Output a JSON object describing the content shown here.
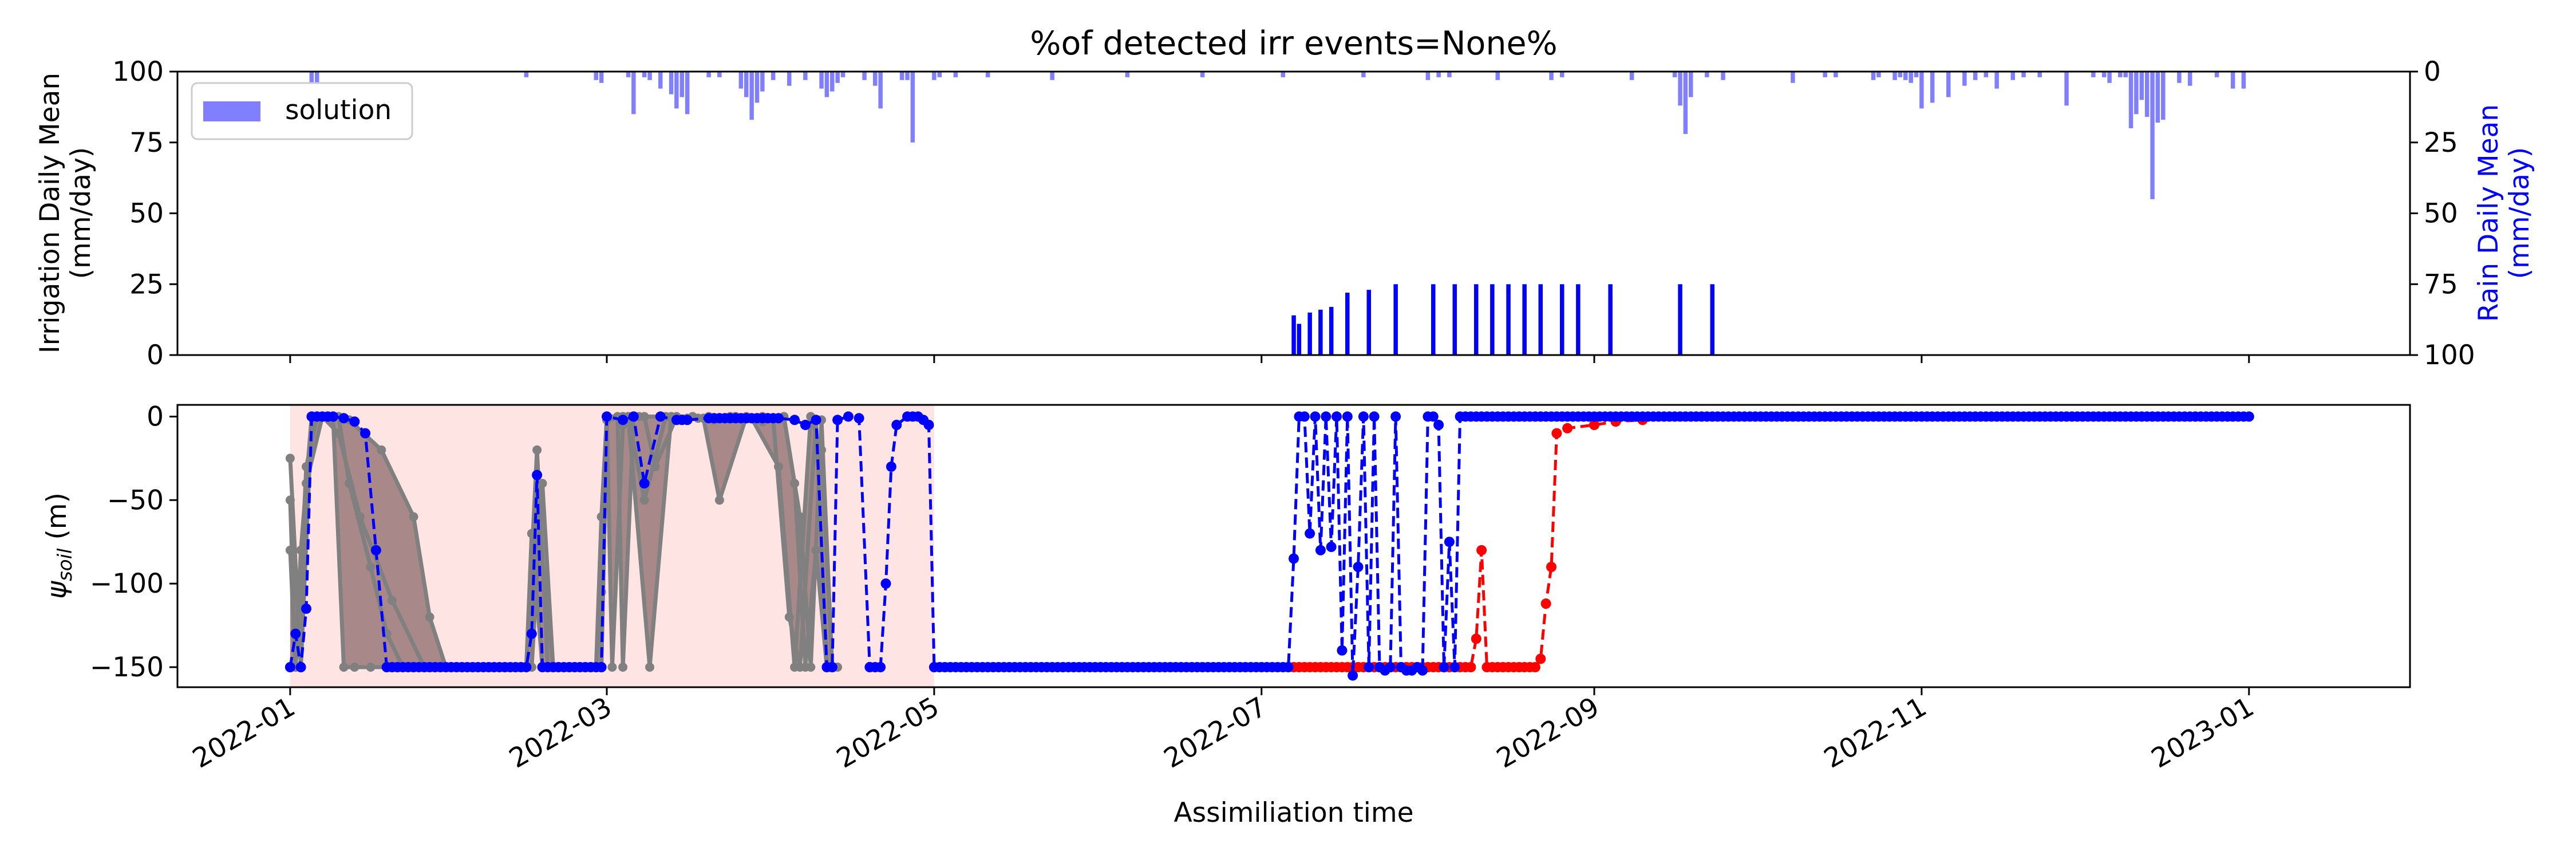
{
  "chart_data": [
    {
      "type": "bar",
      "title": "%of detected irr events=None%",
      "ylabel": "Irrigation Daily Mean\n(mm/day)",
      "ylim": [
        0,
        100
      ],
      "yticks": [
        "0",
        "25",
        "50",
        "75",
        "100"
      ],
      "y2label": "Rain Daily Mean\n(mm/day)",
      "y2lim": [
        100,
        0
      ],
      "y2ticks": [
        "0",
        "25",
        "50",
        "75",
        "100"
      ],
      "y2_color": "#0000ff",
      "legend": {
        "placement": "top-left",
        "entries": [
          "solution"
        ]
      },
      "xlim": [
        "2021-12-11",
        "2023-01-31"
      ],
      "series": [
        {
          "name": "solution",
          "axis": "right",
          "color": "#8080ff",
          "x": [
            "2022-01-05",
            "2022-01-06",
            "2022-02-14",
            "2022-02-27",
            "2022-02-28",
            "2022-03-05",
            "2022-03-06",
            "2022-03-08",
            "2022-03-09",
            "2022-03-11",
            "2022-03-13",
            "2022-03-14",
            "2022-03-15",
            "2022-03-16",
            "2022-03-20",
            "2022-03-22",
            "2022-03-26",
            "2022-03-27",
            "2022-03-28",
            "2022-03-29",
            "2022-03-30",
            "2022-04-01",
            "2022-04-04",
            "2022-04-07",
            "2022-04-10",
            "2022-04-11",
            "2022-04-12",
            "2022-04-13",
            "2022-04-14",
            "2022-04-18",
            "2022-04-20",
            "2022-04-21",
            "2022-04-25",
            "2022-04-26",
            "2022-04-27",
            "2022-05-01",
            "2022-05-02",
            "2022-05-05",
            "2022-05-11",
            "2022-05-23",
            "2022-06-06",
            "2022-06-20",
            "2022-07-05",
            "2022-07-20",
            "2022-08-01",
            "2022-08-03",
            "2022-08-05",
            "2022-08-14",
            "2022-08-24",
            "2022-08-26",
            "2022-09-08",
            "2022-09-16",
            "2022-09-17",
            "2022-09-18",
            "2022-09-19",
            "2022-09-22",
            "2022-09-25",
            "2022-10-08",
            "2022-10-14",
            "2022-10-16",
            "2022-10-23",
            "2022-10-24",
            "2022-10-27",
            "2022-10-28",
            "2022-10-29",
            "2022-10-30",
            "2022-10-31",
            "2022-11-01",
            "2022-11-03",
            "2022-11-06",
            "2022-11-09",
            "2022-11-11",
            "2022-11-13",
            "2022-11-15",
            "2022-11-18",
            "2022-11-20",
            "2022-11-23",
            "2022-11-28",
            "2022-12-03",
            "2022-12-05",
            "2022-12-06",
            "2022-12-08",
            "2022-12-09",
            "2022-12-10",
            "2022-12-11",
            "2022-12-12",
            "2022-12-13",
            "2022-12-14",
            "2022-12-15",
            "2022-12-16",
            "2022-12-19",
            "2022-12-21",
            "2022-12-26",
            "2022-12-29",
            "2022-12-31"
          ],
          "values": [
            4,
            4,
            2,
            3,
            4,
            2,
            15,
            2,
            3,
            6,
            8,
            13,
            9,
            15,
            2,
            2,
            6,
            9,
            17,
            11,
            7,
            3,
            5,
            3,
            6,
            9,
            7,
            4,
            2,
            3,
            5,
            13,
            3,
            3,
            25,
            3,
            2,
            2,
            2,
            3,
            2,
            2,
            2,
            2,
            3,
            2,
            2,
            3,
            3,
            2,
            3,
            2,
            12,
            22,
            9,
            2,
            3,
            4,
            2,
            2,
            3,
            2,
            3,
            2,
            3,
            4,
            2,
            13,
            11,
            9,
            5,
            3,
            2,
            6,
            3,
            2,
            2,
            12,
            2,
            2,
            4,
            2,
            2,
            20,
            15,
            10,
            16,
            45,
            18,
            17,
            4,
            5,
            2,
            6,
            6
          ]
        },
        {
          "name": "",
          "axis": "left",
          "color": "#0000ff",
          "x": [
            "2022-07-07",
            "2022-07-08",
            "2022-07-10",
            "2022-07-12",
            "2022-07-14",
            "2022-07-17",
            "2022-07-21",
            "2022-07-26",
            "2022-08-02",
            "2022-08-06",
            "2022-08-10",
            "2022-08-13",
            "2022-08-16",
            "2022-08-19",
            "2022-08-22",
            "2022-08-26",
            "2022-08-29",
            "2022-09-04",
            "2022-09-17",
            "2022-09-23"
          ],
          "values": [
            14,
            11,
            15,
            16,
            17,
            22,
            23,
            25,
            25,
            25,
            25,
            25,
            25,
            25,
            25,
            25,
            25,
            25,
            25,
            25
          ]
        }
      ]
    },
    {
      "type": "line",
      "xlabel": "Assimiliation time",
      "ylabel_base": "ψ",
      "ylabel_sub": "soil",
      "ylabel_unit": " (m)",
      "ylim": [
        -162,
        7
      ],
      "yticks": [
        "0",
        "−50",
        "−100",
        "−150"
      ],
      "ytick_values": [
        0,
        -50,
        -100,
        -150
      ],
      "xlim": [
        "2021-12-11",
        "2023-01-31"
      ],
      "xticks": [
        "2022-01",
        "2022-03",
        "2022-05",
        "2022-07",
        "2022-09",
        "2022-11",
        "2023-01"
      ],
      "xtick_dates": [
        "2022-01-01",
        "2022-03-01",
        "2022-05-01",
        "2022-07-01",
        "2022-09-01",
        "2022-11-01",
        "2023-01-01"
      ],
      "shaded_region": {
        "x": [
          "2022-01-01",
          "2022-05-01"
        ],
        "color": "#ffe4e4"
      },
      "ensemble": {
        "color": "#808080",
        "members": [
          {
            "x": [
              "2022-01-01",
              "2022-01-03",
              "2022-01-05",
              "2022-01-08",
              "2022-01-12",
              "2022-01-18",
              "2022-01-24",
              "2022-01-27",
              "2022-01-30",
              "2022-02-03",
              "2022-02-14",
              "2022-02-16",
              "2022-02-18",
              "2022-02-20",
              "2022-02-23",
              "2022-02-27",
              "2022-02-28",
              "2022-03-01",
              "2022-03-03",
              "2022-03-04",
              "2022-03-06",
              "2022-03-08",
              "2022-03-10",
              "2022-03-14",
              "2022-03-17",
              "2022-03-21",
              "2022-03-25",
              "2022-03-30",
              "2022-04-03",
              "2022-04-05",
              "2022-04-07",
              "2022-04-09",
              "2022-04-11"
            ],
            "values": [
              -25,
              -150,
              0,
              0,
              -2,
              -20,
              -60,
              -120,
              -150,
              -150,
              -150,
              -20,
              -150,
              -150,
              -150,
              -150,
              -105,
              0,
              0,
              -150,
              0,
              0,
              -30,
              0,
              0,
              -2,
              0,
              -3,
              0,
              -40,
              -150,
              -80,
              -150
            ]
          },
          {
            "x": [
              "2022-01-01",
              "2022-01-02",
              "2022-01-04",
              "2022-01-07",
              "2022-01-10",
              "2022-01-14",
              "2022-01-20",
              "2022-01-26",
              "2022-02-10",
              "2022-02-15",
              "2022-02-17",
              "2022-02-19",
              "2022-02-22",
              "2022-02-27",
              "2022-02-28",
              "2022-03-01",
              "2022-03-02",
              "2022-03-04",
              "2022-03-05",
              "2022-03-08",
              "2022-03-12",
              "2022-03-18",
              "2022-03-24",
              "2022-03-28",
              "2022-04-02",
              "2022-04-05",
              "2022-04-08",
              "2022-04-10",
              "2022-04-12"
            ],
            "values": [
              -50,
              -150,
              -40,
              0,
              -10,
              -60,
              -110,
              -150,
              -150,
              -150,
              -40,
              -150,
              -150,
              -150,
              -60,
              0,
              -150,
              -5,
              0,
              -50,
              0,
              -1,
              0,
              -1,
              -30,
              -150,
              0,
              -20,
              -150
            ]
          },
          {
            "x": [
              "2022-01-01",
              "2022-01-02",
              "2022-01-03",
              "2022-01-05",
              "2022-01-09",
              "2022-01-11",
              "2022-01-13",
              "2022-01-16",
              "2022-01-20",
              "2022-02-14",
              "2022-02-15",
              "2022-02-17",
              "2022-02-21",
              "2022-02-28",
              "2022-03-01",
              "2022-03-04",
              "2022-03-07",
              "2022-03-11",
              "2022-03-16",
              "2022-03-20",
              "2022-03-25",
              "2022-03-30",
              "2022-04-01",
              "2022-04-04",
              "2022-04-06",
              "2022-04-09",
              "2022-04-11",
              "2022-04-13"
            ],
            "values": [
              -150,
              -150,
              -80,
              0,
              -1,
              -150,
              -150,
              -150,
              -150,
              -150,
              -70,
              -150,
              -150,
              -150,
              0,
              0,
              0,
              0,
              -1,
              0,
              0,
              0,
              -1,
              -120,
              -150,
              -2,
              -150,
              -150
            ]
          },
          {
            "x": [
              "2022-01-01",
              "2022-01-02",
              "2022-01-03",
              "2022-01-04",
              "2022-01-06",
              "2022-01-10",
              "2022-01-12",
              "2022-01-16",
              "2022-01-19",
              "2022-01-22",
              "2022-01-25",
              "2022-02-14",
              "2022-02-15",
              "2022-02-16",
              "2022-02-19",
              "2022-02-28",
              "2022-03-01",
              "2022-03-05",
              "2022-03-09",
              "2022-03-13",
              "2022-03-19",
              "2022-03-22",
              "2022-03-27",
              "2022-04-03",
              "2022-04-06",
              "2022-04-08",
              "2022-04-10",
              "2022-04-12"
            ],
            "values": [
              -80,
              -150,
              -100,
              -30,
              0,
              0,
              -40,
              -90,
              -130,
              -150,
              -150,
              -150,
              -150,
              -55,
              -150,
              -150,
              -2,
              0,
              -150,
              0,
              -1,
              -50,
              0,
              0,
              -60,
              -150,
              -2,
              -150
            ]
          }
        ]
      },
      "series": [
        {
          "name": "",
          "color": "#0000ff",
          "x": [
            "2022-01-01",
            "2022-01-02",
            "2022-01-03",
            "2022-01-04",
            "2022-01-05",
            "2022-01-07",
            "2022-01-09",
            "2022-01-11",
            "2022-01-13",
            "2022-01-15",
            "2022-01-17",
            "2022-01-19",
            "2022-01-21",
            "2022-01-23",
            "2022-01-25",
            "2022-01-27",
            "2022-01-29",
            "2022-01-31",
            "2022-02-14",
            "2022-02-15",
            "2022-02-16",
            "2022-02-17",
            "2022-02-18",
            "2022-02-20",
            "2022-02-22",
            "2022-02-24",
            "2022-02-26",
            "2022-02-28",
            "2022-03-01",
            "2022-03-04",
            "2022-03-06",
            "2022-03-08",
            "2022-03-11",
            "2022-03-14",
            "2022-03-16",
            "2022-03-20",
            "2022-03-25",
            "2022-03-29",
            "2022-04-02",
            "2022-04-05",
            "2022-04-07",
            "2022-04-09",
            "2022-04-11",
            "2022-04-12",
            "2022-04-13",
            "2022-04-15",
            "2022-04-17",
            "2022-04-19",
            "2022-04-21",
            "2022-04-22",
            "2022-04-23",
            "2022-04-24",
            "2022-04-26",
            "2022-04-28",
            "2022-04-29",
            "2022-04-30",
            "2022-05-01",
            "2022-05-15",
            "2022-06-01",
            "2022-06-15",
            "2022-07-01",
            "2022-07-06",
            "2022-07-07",
            "2022-07-08",
            "2022-07-09",
            "2022-07-10",
            "2022-07-11",
            "2022-07-12",
            "2022-07-13",
            "2022-07-14",
            "2022-07-15",
            "2022-07-16",
            "2022-07-17",
            "2022-07-18",
            "2022-07-19",
            "2022-07-20",
            "2022-07-21",
            "2022-07-22",
            "2022-07-23",
            "2022-07-24",
            "2022-07-25",
            "2022-07-26",
            "2022-07-27",
            "2022-07-28",
            "2022-07-29",
            "2022-07-30",
            "2022-07-31",
            "2022-08-01",
            "2022-08-02",
            "2022-08-03",
            "2022-08-04",
            "2022-08-05",
            "2022-08-06",
            "2022-08-07",
            "2022-08-08",
            "2022-08-09",
            "2022-08-10",
            "2022-08-11",
            "2022-08-12",
            "2022-08-13",
            "2022-08-20",
            "2022-09-01",
            "2022-09-15",
            "2022-10-01",
            "2022-10-15",
            "2022-11-01",
            "2022-11-15",
            "2022-12-01",
            "2022-12-15",
            "2023-01-01"
          ],
          "values": [
            -150,
            -130,
            -150,
            -115,
            0,
            0,
            0,
            -1,
            -3,
            -10,
            -80,
            -150,
            -150,
            -150,
            -150,
            -150,
            -150,
            -150,
            -150,
            -130,
            -35,
            -150,
            -150,
            -150,
            -150,
            -150,
            -150,
            -150,
            0,
            -2,
            0,
            -40,
            0,
            -2,
            -2,
            -1,
            -1,
            -1,
            -1,
            -2,
            -5,
            -2,
            -150,
            -150,
            -2,
            0,
            -1,
            -150,
            -150,
            -100,
            -30,
            -5,
            0,
            0,
            -2,
            -5,
            -150,
            -150,
            -150,
            -150,
            -150,
            -150,
            -85,
            0,
            0,
            -70,
            0,
            -80,
            0,
            -78,
            0,
            -140,
            0,
            -155,
            -90,
            0,
            -150,
            0,
            -150,
            -152,
            -150,
            0,
            -150,
            -152,
            -152,
            -150,
            -152,
            0,
            0,
            -5,
            -150,
            -75,
            -150,
            0,
            0,
            0,
            0,
            0,
            0,
            0,
            0,
            0,
            0,
            0,
            0,
            0,
            0,
            0,
            0,
            0
          ]
        },
        {
          "name": "",
          "color": "#ff0000",
          "x": [
            "2022-07-06",
            "2022-07-15",
            "2022-07-25",
            "2022-08-01",
            "2022-08-06",
            "2022-08-08",
            "2022-08-09",
            "2022-08-10",
            "2022-08-11",
            "2022-08-12",
            "2022-08-13",
            "2022-08-14",
            "2022-08-16",
            "2022-08-19",
            "2022-08-21",
            "2022-08-22",
            "2022-08-23",
            "2022-08-24",
            "2022-08-25",
            "2022-08-27",
            "2022-09-01",
            "2022-09-05",
            "2022-09-10"
          ],
          "values": [
            -150,
            -150,
            -150,
            -150,
            -150,
            -150,
            -150,
            -133,
            -80,
            -150,
            -150,
            -150,
            -150,
            -150,
            -150,
            -145,
            -112,
            -90,
            -10,
            -7,
            -5,
            -3,
            -2
          ]
        }
      ]
    }
  ]
}
